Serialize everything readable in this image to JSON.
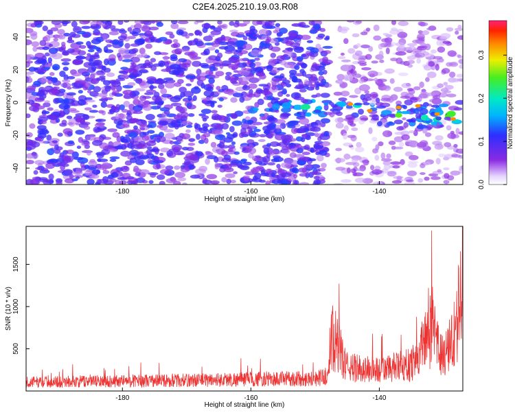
{
  "figure": {
    "title": "C2E4.2025.210.19.03.R08"
  },
  "chart_data": [
    {
      "type": "heatmap",
      "title": "",
      "xlabel": "Height of straight line (km)",
      "ylabel": "Frequency (Hz)",
      "xlim": [
        -195,
        -127
      ],
      "ylim": [
        -50,
        50
      ],
      "x_ticks": [
        -180,
        -160,
        -140
      ],
      "y_ticks": [
        -40,
        -20,
        0,
        20,
        40
      ],
      "colorbar": {
        "label": "Normalized spectral amplitude",
        "range": [
          0,
          0.38
        ],
        "ticks": [
          0.0,
          0.1,
          0.2,
          0.3
        ],
        "colormap": "rainbow (white-purple-blue-cyan-green-yellow-orange-red-magenta)"
      },
      "features": [
        {
          "description": "broadband purple/blue noise",
          "x_range": [
            -195,
            -148
          ],
          "freq_range": [
            -50,
            48
          ]
        },
        {
          "description": "bright signal band",
          "x_range": [
            -160,
            -128
          ],
          "freq_center": [
            0,
            -10
          ],
          "max_amplitude": 0.35
        }
      ]
    },
    {
      "type": "line",
      "title": "",
      "xlabel": "Height of straight line (km)",
      "ylabel": "SNR (10 * v/v)",
      "xlim": [
        -195,
        -127
      ],
      "ylim": [
        0,
        1950
      ],
      "x_ticks": [
        -180,
        -160,
        -140
      ],
      "y_ticks": [
        500,
        1000,
        1500
      ],
      "color": "#ee3333",
      "profile": [
        {
          "x": -195,
          "y": 150
        },
        {
          "x": -180,
          "y": 170
        },
        {
          "x": -170,
          "y": 180
        },
        {
          "x": -160,
          "y": 200
        },
        {
          "x": -150,
          "y": 210
        },
        {
          "x": -148,
          "y": 250
        },
        {
          "x": -147.5,
          "y": 1000
        },
        {
          "x": -146.5,
          "y": 750
        },
        {
          "x": -145,
          "y": 400
        },
        {
          "x": -140,
          "y": 350
        },
        {
          "x": -135,
          "y": 450
        },
        {
          "x": -132,
          "y": 1030
        },
        {
          "x": -130,
          "y": 550
        },
        {
          "x": -128,
          "y": 1030
        },
        {
          "x": -127,
          "y": 1950
        }
      ]
    }
  ]
}
